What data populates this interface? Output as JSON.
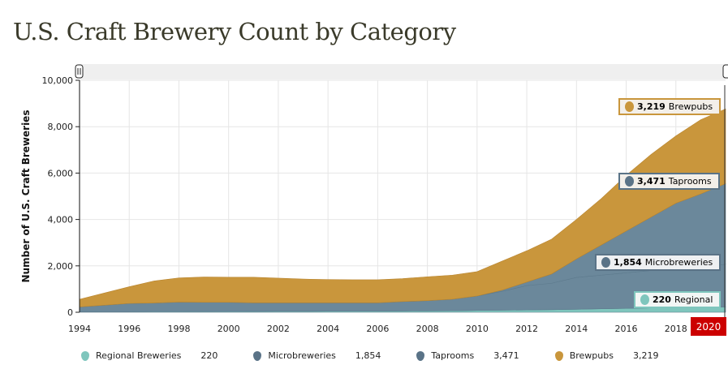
{
  "title": "U.S. Craft Brewery Count by Category",
  "chart_data": {
    "type": "area",
    "stacked": true,
    "ylabel": "Number of U.S. Craft Breweries",
    "xlabel": "",
    "ylim": [
      0,
      10000
    ],
    "xlim": [
      1994,
      2020
    ],
    "grid": true,
    "legend_position": "bottom",
    "x_ticks": [
      "1994",
      "1996",
      "1998",
      "2000",
      "2002",
      "2004",
      "2006",
      "2008",
      "2010",
      "2012",
      "2014",
      "2016",
      "2018"
    ],
    "y_ticks": [
      "0",
      "2,000",
      "4,000",
      "6,000",
      "8,000",
      "10,000"
    ],
    "x": [
      1994,
      1996,
      1997,
      1998,
      1999,
      2000,
      2001,
      2002,
      2003,
      2004,
      2005,
      2006,
      2007,
      2008,
      2009,
      2010,
      2011,
      2012,
      2013,
      2014,
      2015,
      2016,
      2017,
      2018,
      2019,
      2020
    ],
    "series": [
      {
        "name": "Regional Breweries",
        "color": "#7fc6bd",
        "values": [
          20,
          25,
          28,
          30,
          32,
          35,
          38,
          40,
          42,
          45,
          48,
          50,
          55,
          60,
          65,
          80,
          90,
          100,
          110,
          130,
          150,
          170,
          185,
          200,
          210,
          220
        ]
      },
      {
        "name": "Microbreweries",
        "color": "#6b889b",
        "values": [
          210,
          355,
          372,
          410,
          400,
          395,
          372,
          370,
          368,
          365,
          362,
          360,
          405,
          440,
          495,
          620,
          810,
          1050,
          1140,
          1370,
          1450,
          1530,
          1615,
          1700,
          1690,
          1854
        ]
      },
      {
        "name": "Taprooms",
        "color": "#6b889b",
        "values": [
          0,
          0,
          0,
          0,
          0,
          0,
          0,
          0,
          0,
          0,
          0,
          0,
          0,
          0,
          0,
          0,
          50,
          150,
          400,
          800,
          1300,
          1800,
          2300,
          2800,
          3200,
          3471
        ]
      },
      {
        "name": "Brewpubs",
        "color": "#c9963c",
        "values": [
          330,
          720,
          950,
          1040,
          1088,
          1080,
          1100,
          1060,
          1020,
          1000,
          990,
          990,
          990,
          1030,
          1040,
          1050,
          1250,
          1350,
          1500,
          1700,
          2000,
          2400,
          2700,
          2900,
          3200,
          3219
        ]
      }
    ],
    "current_year": "2020",
    "callouts": [
      {
        "value": "3,219",
        "label": "Brewpubs"
      },
      {
        "value": "3,471",
        "label": "Taprooms"
      },
      {
        "value": "1,854",
        "label": "Microbreweries"
      },
      {
        "value": "220",
        "label": "Regional"
      }
    ],
    "legend": [
      {
        "label": "Regional Breweries",
        "value": "220"
      },
      {
        "label": "Microbreweries",
        "value": "1,854"
      },
      {
        "label": "Taprooms",
        "value": "3,471"
      },
      {
        "label": "Brewpubs",
        "value": "3,219"
      }
    ]
  }
}
